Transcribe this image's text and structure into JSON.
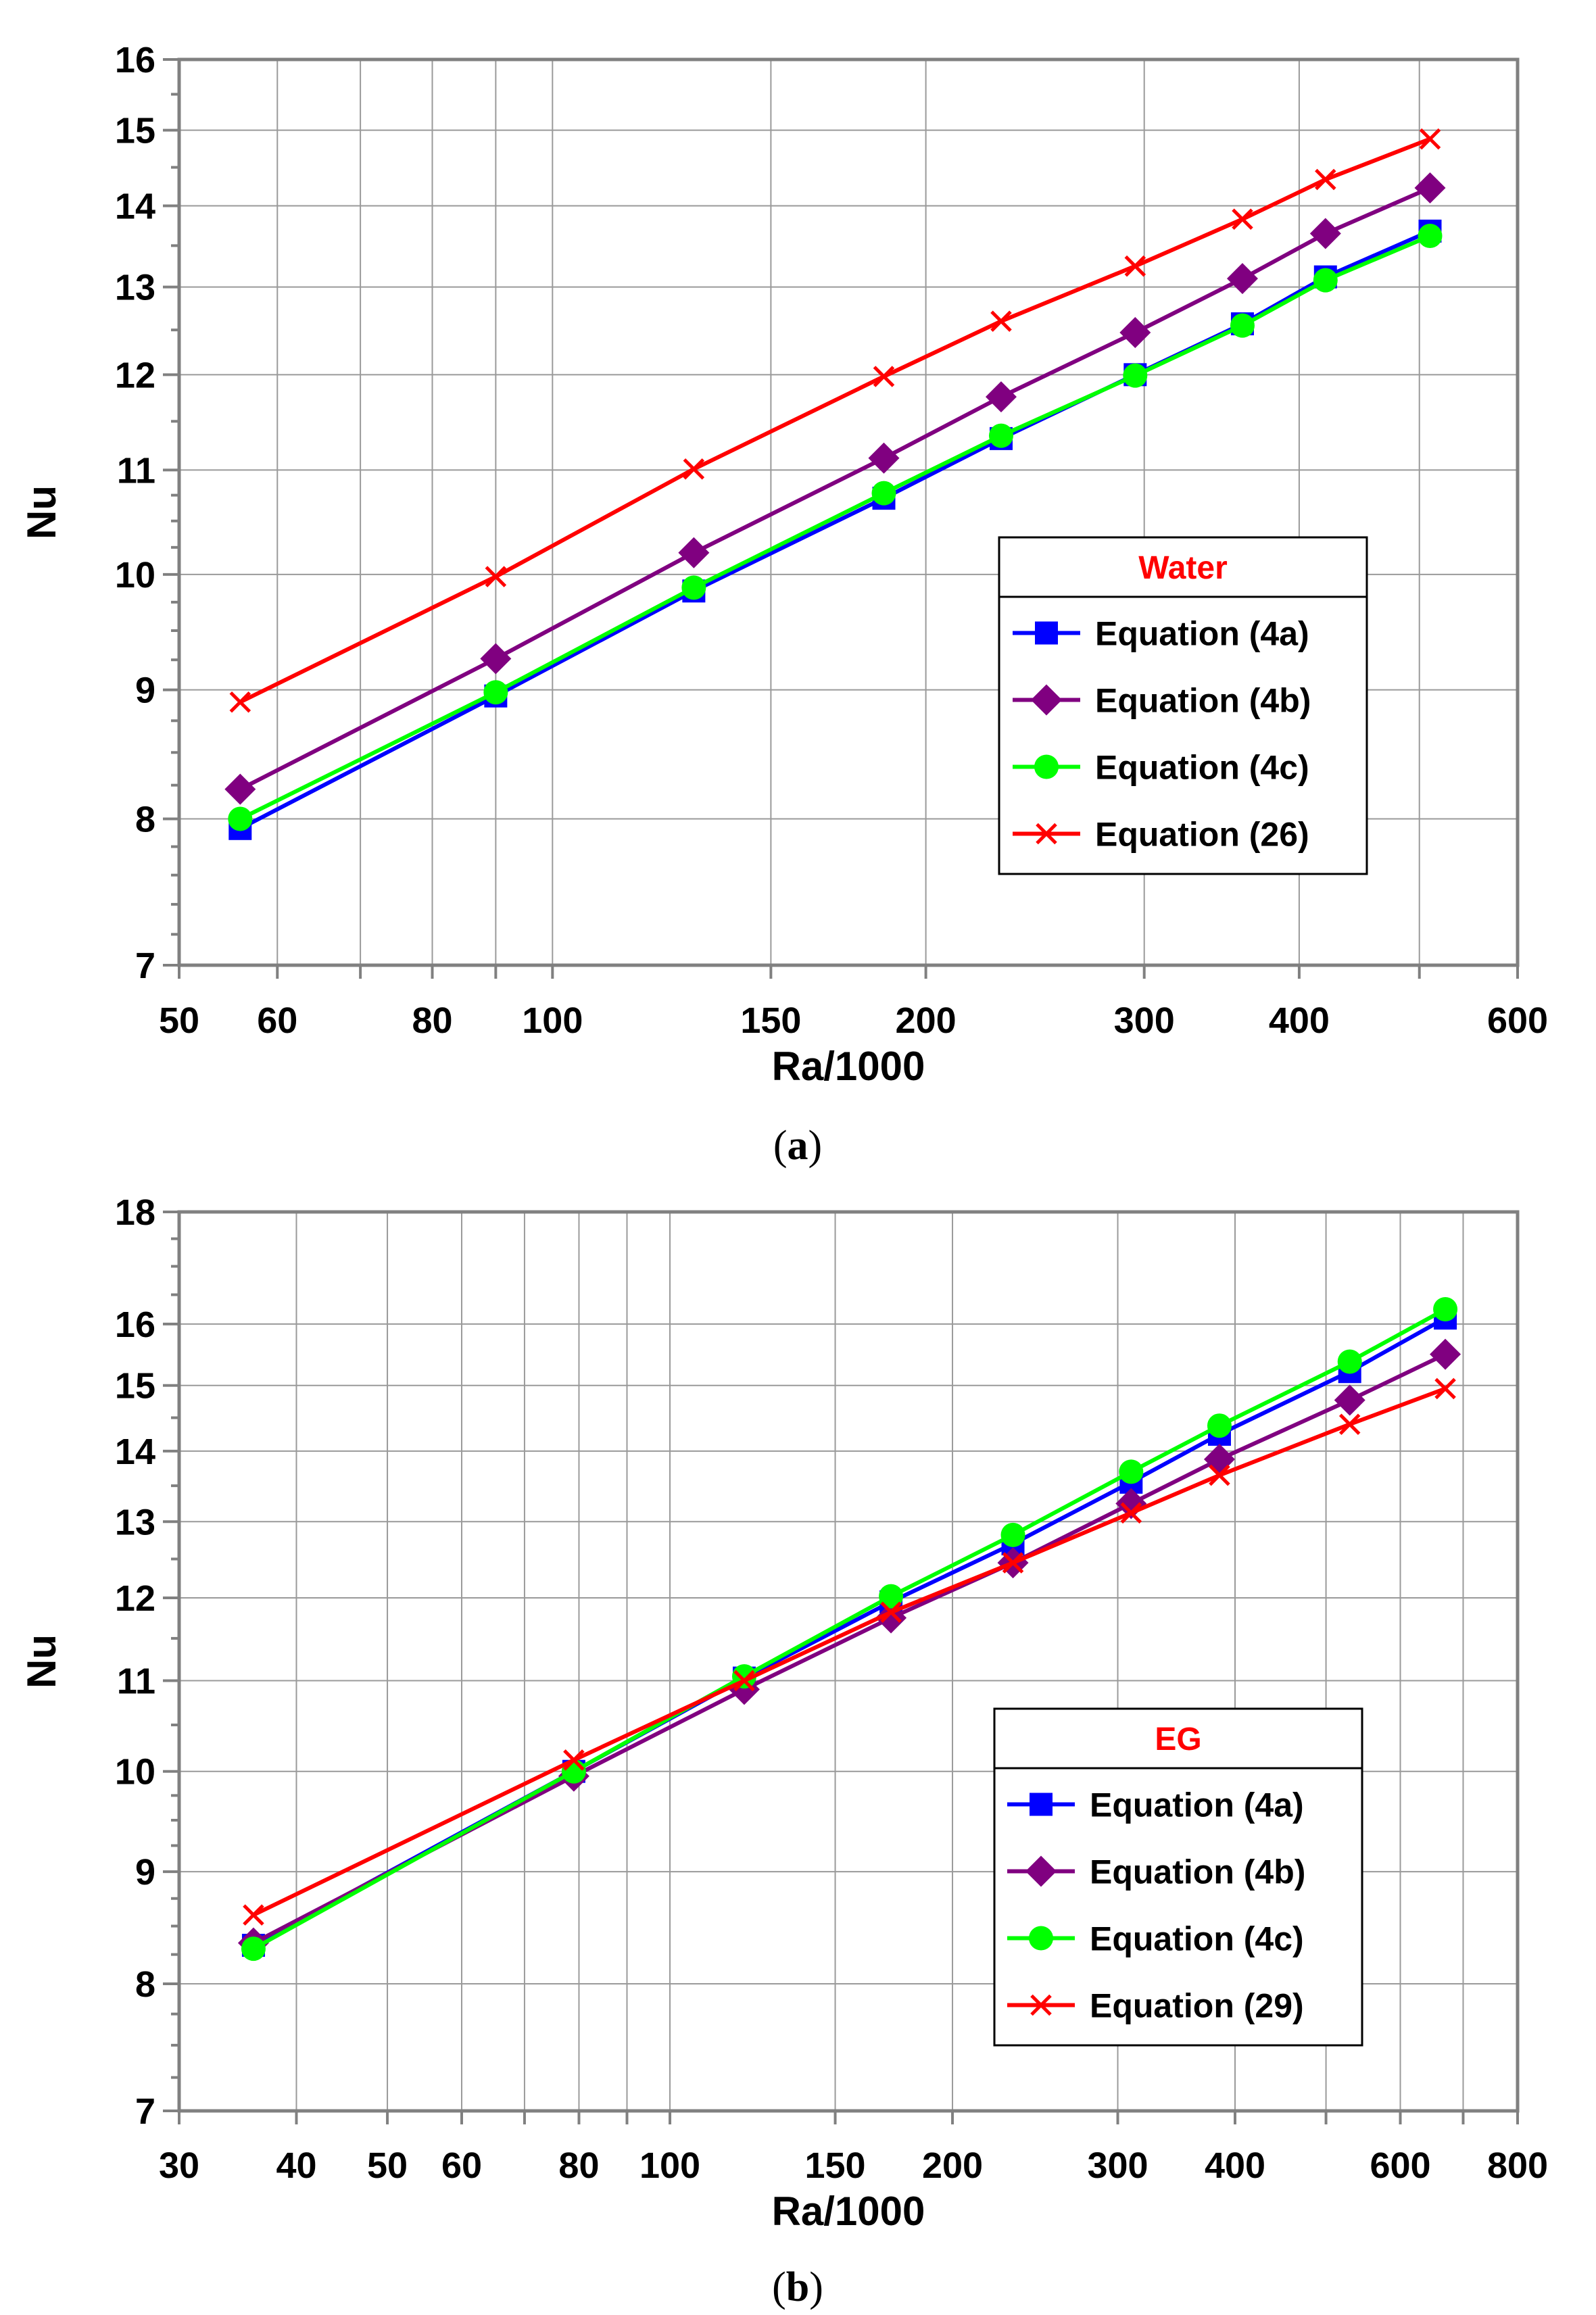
{
  "chart_data": [
    {
      "type": "line",
      "panel": "a",
      "caption_open": "(",
      "caption_letter": "a",
      "caption_close": ")",
      "xscale": "log",
      "yscale": "log",
      "xlabel": "Ra/1000",
      "ylabel": "Nu",
      "xlim": [
        50,
        600
      ],
      "ylim": [
        7,
        16
      ],
      "xticks": [
        50,
        60,
        80,
        100,
        150,
        200,
        300,
        400,
        600
      ],
      "yticks": [
        7,
        8,
        9,
        10,
        11,
        12,
        13,
        14,
        15,
        16
      ],
      "xgrid": [
        50,
        60,
        70,
        80,
        90,
        100,
        150,
        200,
        300,
        400,
        500,
        600
      ],
      "yminor": [
        7.2,
        7.4,
        7.6,
        7.8,
        8.25,
        8.5,
        8.75,
        9.25,
        9.5,
        9.75,
        10.25,
        10.5,
        10.75,
        11.5,
        12.5,
        13.5,
        14.5,
        15.5
      ],
      "grid": true,
      "legend": {
        "title": "Water",
        "position": "right-middle"
      },
      "x": [
        56,
        90,
        130,
        185,
        230,
        295,
        360,
        420,
        510
      ],
      "series": [
        {
          "name": "Equation (4a)",
          "color": "#0000ff",
          "marker": "square",
          "values": [
            7.93,
            8.95,
            9.85,
            10.72,
            11.32,
            12.0,
            12.57,
            13.12,
            13.68
          ]
        },
        {
          "name": "Equation (4b)",
          "color": "#800080",
          "marker": "diamond",
          "values": [
            8.22,
            9.26,
            10.2,
            11.12,
            11.76,
            12.47,
            13.1,
            13.65,
            14.23
          ]
        },
        {
          "name": "Equation (4c)",
          "color": "#00ff00",
          "marker": "circle",
          "values": [
            8.0,
            8.98,
            9.88,
            10.77,
            11.35,
            11.99,
            12.55,
            13.08,
            13.62
          ]
        },
        {
          "name": "Equation (26)",
          "color": "#ff0000",
          "marker": "x",
          "values": [
            8.9,
            9.98,
            11.01,
            11.98,
            12.6,
            13.25,
            13.83,
            14.34,
            14.88
          ]
        }
      ]
    },
    {
      "type": "line",
      "panel": "b",
      "caption_open": "(",
      "caption_letter": "b",
      "caption_close": ")",
      "xscale": "log",
      "yscale": "log",
      "xlabel": "Ra/1000",
      "ylabel": "Nu",
      "xlim": [
        30,
        800
      ],
      "ylim": [
        7,
        18
      ],
      "xticks": [
        30,
        40,
        50,
        60,
        80,
        100,
        150,
        200,
        300,
        400,
        600,
        800
      ],
      "yticks": [
        7,
        8,
        9,
        10,
        11,
        12,
        13,
        14,
        15,
        16,
        18
      ],
      "xgrid": [
        30,
        40,
        50,
        60,
        70,
        80,
        90,
        100,
        150,
        200,
        300,
        400,
        500,
        600,
        700,
        800
      ],
      "yminor": [
        7.25,
        7.5,
        7.75,
        8.25,
        8.5,
        8.75,
        9.25,
        9.5,
        9.75,
        10.5,
        11.5,
        12.5,
        13.5,
        14.5,
        16.5,
        17,
        17.5
      ],
      "grid": true,
      "legend": {
        "title": "EG",
        "position": "bottom-right"
      },
      "x": [
        36,
        79,
        120,
        172,
        232,
        310,
        385,
        530,
        670
      ],
      "series": [
        {
          "name": "Equation (4a)",
          "color": "#0000ff",
          "marker": "square",
          "values": [
            8.33,
            10.0,
            11.03,
            11.95,
            12.7,
            13.55,
            14.25,
            15.22,
            16.1
          ]
        },
        {
          "name": "Equation (4b)",
          "color": "#800080",
          "marker": "diamond",
          "values": [
            8.35,
            9.95,
            10.9,
            11.75,
            12.45,
            13.25,
            13.88,
            14.77,
            15.5
          ]
        },
        {
          "name": "Equation (4c)",
          "color": "#00ff00",
          "marker": "circle",
          "values": [
            8.3,
            10.0,
            11.05,
            12.02,
            12.82,
            13.7,
            14.38,
            15.38,
            16.25
          ]
        },
        {
          "name": "Equation (29)",
          "color": "#ff0000",
          "marker": "x",
          "values": [
            8.6,
            10.12,
            11.0,
            11.82,
            12.45,
            13.12,
            13.65,
            14.4,
            14.95
          ]
        }
      ]
    }
  ]
}
